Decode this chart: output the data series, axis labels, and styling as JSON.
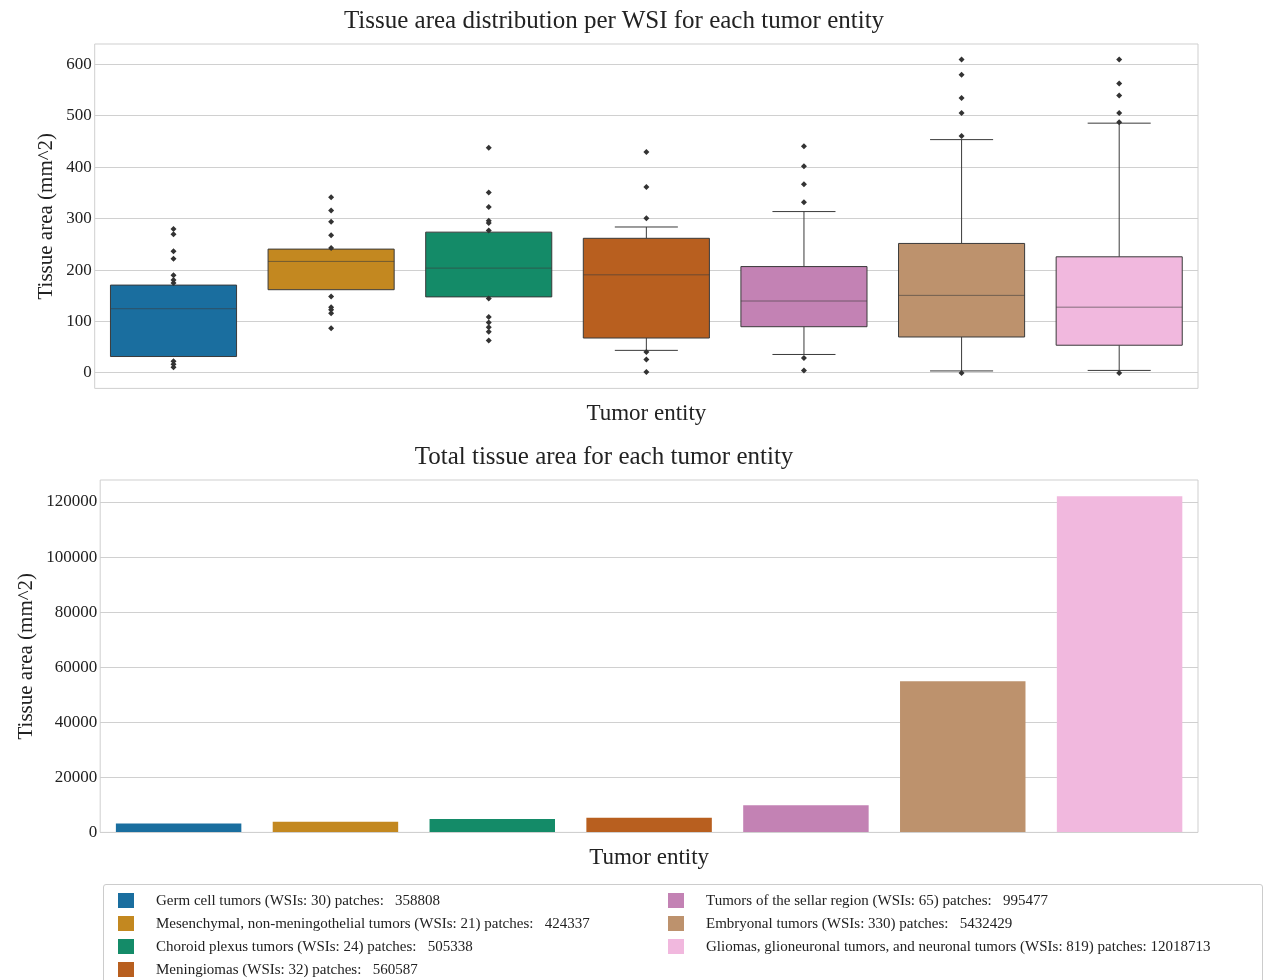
{
  "chart_data": [
    {
      "type": "box",
      "title": "Tissue area distribution per WSI for each tumor entity",
      "xlabel": "Tumor entity",
      "ylabel": "Tissue area (mm^2)",
      "categories": [
        null,
        null,
        null,
        null,
        null,
        null,
        null
      ],
      "colors": [
        "#1a6e9f",
        "#c38820",
        "#148b68",
        "#b85f1f",
        "#c382b4",
        "#bd926d",
        "#f1b8de"
      ],
      "boxes": [
        {
          "low": 32,
          "q1": 32,
          "median": 125,
          "q3": 171,
          "high": 171,
          "outliers": [
            280,
            270,
            237,
            222,
            190,
            181,
            175,
            23,
            17,
            11
          ]
        },
        {
          "low": 162,
          "q1": 162,
          "median": 217,
          "q3": 241,
          "high": 241,
          "outliers": [
            342,
            316,
            294,
            268,
            243,
            149,
            128,
            123,
            116,
            87
          ]
        },
        {
          "low": 148,
          "q1": 148,
          "median": 204,
          "q3": 274,
          "high": 274,
          "outliers": [
            438,
            351,
            323,
            296,
            292,
            277,
            145,
            109,
            98,
            89,
            80,
            63
          ]
        },
        {
          "low": 44,
          "q1": 68,
          "median": 191,
          "q3": 262,
          "high": 284,
          "outliers": [
            430,
            362,
            301,
            41,
            26,
            2
          ]
        },
        {
          "low": 36,
          "q1": 90,
          "median": 140,
          "q3": 207,
          "high": 314,
          "outliers": [
            441,
            402,
            367,
            332,
            29,
            5
          ]
        },
        {
          "low": 4,
          "q1": 70,
          "median": 151,
          "q3": 252,
          "high": 454,
          "outliers": [
            610,
            580,
            535,
            506,
            461,
            0
          ]
        },
        {
          "low": 5,
          "q1": 54,
          "median": 128,
          "q3": 226,
          "high": 486,
          "outliers": [
            610,
            563,
            540,
            506,
            488,
            0
          ]
        }
      ],
      "ylim": [
        -30,
        640
      ],
      "yticks": [
        0,
        100,
        200,
        300,
        400,
        500,
        600
      ],
      "grid": "y",
      "tick_labels": "y",
      "marker": "diamond"
    },
    {
      "type": "bar",
      "title": "Total tissue area for each tumor entity",
      "xlabel": "Tumor entity",
      "ylabel": "Tissue area (mm^2)",
      "categories": [
        null,
        null,
        null,
        null,
        null,
        null,
        null
      ],
      "series": [
        {
          "name": "Germ cell tumors (WSIs: 30) patches:   358808",
          "color": "#1a6e9f",
          "values": [
            3200,
            null,
            null,
            null,
            null,
            null,
            null
          ]
        },
        {
          "name": "Mesenchymal, non-meningothelial tumors (WSIs: 21) patches:   424337",
          "color": "#c38820",
          "values": [
            null,
            3900,
            null,
            null,
            null,
            null,
            null
          ]
        },
        {
          "name": "Choroid plexus tumors (WSIs: 24) patches:   505338",
          "color": "#148b68",
          "values": [
            null,
            null,
            4900,
            null,
            null,
            null,
            null
          ]
        },
        {
          "name": "Meningiomas (WSIs: 32) patches:   560587",
          "color": "#b85f1f",
          "values": [
            null,
            null,
            null,
            5300,
            null,
            null,
            null
          ]
        },
        {
          "name": "Tumors of the sellar region (WSIs: 65) patches:   995477",
          "color": "#c382b4",
          "values": [
            null,
            null,
            null,
            null,
            9900,
            null,
            null
          ]
        },
        {
          "name": "Embryonal tumors (WSIs: 330) patches:   5432429",
          "color": "#bd926d",
          "values": [
            null,
            null,
            null,
            null,
            null,
            54900,
            null
          ]
        },
        {
          "name": "Gliomas, glioneuronal tumors, and neuronal tumors (WSIs: 819) patches: 12018713",
          "color": "#f1b8de",
          "values": [
            null,
            null,
            null,
            null,
            null,
            null,
            122100
          ]
        }
      ],
      "ylim": [
        0,
        128000
      ],
      "yticks": [
        0,
        20000,
        40000,
        60000,
        80000,
        100000,
        120000
      ],
      "grid": "y",
      "tick_labels": "y",
      "legend": "bottom"
    }
  ]
}
